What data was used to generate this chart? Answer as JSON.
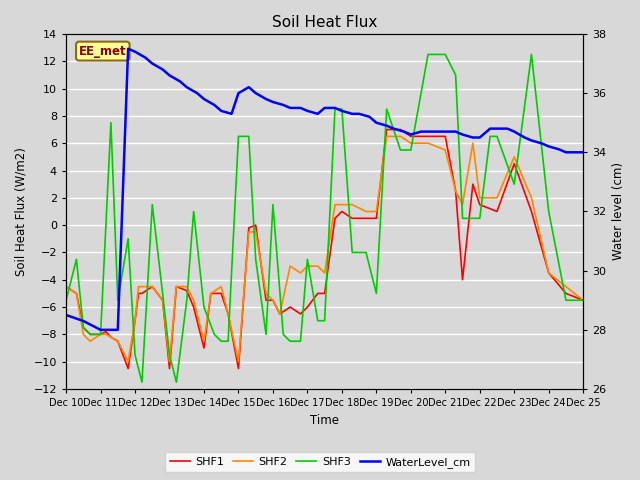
{
  "title": "Soil Heat Flux",
  "ylabel_left": "Soil Heat Flux (W/m2)",
  "ylabel_right": "Water level (cm)",
  "xlabel": "Time",
  "ylim_left": [
    -12,
    14
  ],
  "ylim_right": [
    26,
    38
  ],
  "yticks_left": [
    -12,
    -10,
    -8,
    -6,
    -4,
    -2,
    0,
    2,
    4,
    6,
    8,
    10,
    12,
    14
  ],
  "yticks_right": [
    26,
    28,
    30,
    32,
    34,
    36,
    38
  ],
  "xtick_labels": [
    "Dec 10",
    "Dec 11",
    "Dec 12",
    "Dec 13",
    "Dec 14",
    "Dec 15",
    "Dec 16",
    "Dec 17",
    "Dec 18",
    "Dec 19",
    "Dec 20",
    "Dec 21",
    "Dec 22",
    "Dec 23",
    "Dec 24",
    "Dec 25"
  ],
  "bg_color": "#d8d8d8",
  "plot_bg_color": "#d8d8d8",
  "grid_color": "#ffffff",
  "legend_label": "EE_met",
  "legend_bg": "#ffff99",
  "legend_border": "#8B0000",
  "colors": {
    "SHF1": "#ff0000",
    "SHF2": "#ff8800",
    "SHF3": "#00cc00",
    "WaterLevel_cm": "#0000ff"
  },
  "SHF1_x": [
    0,
    0.3,
    0.5,
    0.7,
    1.0,
    1.15,
    1.3,
    1.5,
    1.8,
    2.0,
    2.1,
    2.2,
    2.5,
    2.8,
    3.0,
    3.2,
    3.5,
    3.7,
    4.0,
    4.2,
    4.5,
    4.7,
    5.0,
    5.3,
    5.5,
    5.8,
    6.0,
    6.2,
    6.5,
    6.8,
    7.0,
    7.3,
    7.5,
    7.8,
    8.0,
    8.3,
    8.7,
    9.0,
    9.3,
    9.7,
    10.0,
    10.5,
    11.0,
    11.3,
    11.5,
    11.8,
    12.0,
    12.5,
    13.0,
    13.5,
    14.0,
    14.5,
    15.0
  ],
  "SHF1": [
    -4.5,
    -5.0,
    -7.5,
    -8.0,
    -8.0,
    -7.8,
    -8.2,
    -8.5,
    -10.5,
    -7.0,
    -5.0,
    -5.0,
    -4.5,
    -5.5,
    -10.5,
    -4.5,
    -4.8,
    -6.0,
    -9.0,
    -5.0,
    -5.0,
    -6.5,
    -10.5,
    -0.2,
    0.0,
    -5.5,
    -5.5,
    -6.5,
    -6.0,
    -6.5,
    -6.0,
    -5.0,
    -5.0,
    0.5,
    1.0,
    0.5,
    0.5,
    0.5,
    7.0,
    7.0,
    6.5,
    6.5,
    6.5,
    2.5,
    -4.0,
    3.0,
    1.5,
    1.0,
    4.5,
    1.0,
    -3.5,
    -5.0,
    -5.5
  ],
  "SHF2_x": [
    0,
    0.3,
    0.5,
    0.7,
    1.0,
    1.15,
    1.3,
    1.5,
    1.8,
    2.0,
    2.1,
    2.2,
    2.5,
    2.8,
    3.0,
    3.2,
    3.5,
    3.7,
    4.0,
    4.2,
    4.5,
    4.7,
    5.0,
    5.3,
    5.5,
    5.8,
    6.0,
    6.2,
    6.5,
    6.8,
    7.0,
    7.3,
    7.5,
    7.8,
    8.0,
    8.3,
    8.7,
    9.0,
    9.3,
    9.7,
    10.0,
    10.5,
    11.0,
    11.3,
    11.5,
    11.8,
    12.0,
    12.5,
    13.0,
    13.5,
    14.0,
    14.5,
    15.0
  ],
  "SHF2": [
    -4.5,
    -5.0,
    -8.0,
    -8.5,
    -8.0,
    -8.0,
    -8.2,
    -8.5,
    -10.0,
    -7.0,
    -4.5,
    -4.5,
    -4.5,
    -5.5,
    -10.0,
    -4.5,
    -4.5,
    -5.5,
    -8.5,
    -5.0,
    -4.5,
    -6.5,
    -10.0,
    -0.5,
    -0.5,
    -5.0,
    -5.5,
    -6.5,
    -3.0,
    -3.5,
    -3.0,
    -3.0,
    -3.5,
    1.5,
    1.5,
    1.5,
    1.0,
    1.0,
    6.5,
    6.5,
    6.0,
    6.0,
    5.5,
    2.5,
    1.5,
    6.0,
    2.0,
    2.0,
    5.0,
    2.0,
    -3.5,
    -4.5,
    -5.5
  ],
  "SHF3_x": [
    0,
    0.3,
    0.5,
    0.7,
    1.0,
    1.3,
    1.5,
    1.8,
    2.0,
    2.2,
    2.5,
    2.8,
    3.0,
    3.2,
    3.5,
    3.7,
    4.0,
    4.3,
    4.5,
    4.7,
    5.0,
    5.3,
    5.5,
    5.8,
    6.0,
    6.3,
    6.5,
    6.8,
    7.0,
    7.3,
    7.5,
    7.8,
    8.0,
    8.3,
    8.7,
    9.0,
    9.3,
    9.7,
    10.0,
    10.5,
    11.0,
    11.3,
    11.5,
    11.8,
    12.0,
    12.3,
    12.5,
    13.0,
    13.5,
    14.0,
    14.5,
    15.0
  ],
  "SHF3": [
    -5.5,
    -2.5,
    -7.5,
    -8.0,
    -8.0,
    7.5,
    -5.5,
    -1.0,
    -9.5,
    -11.5,
    1.5,
    -5.0,
    -9.5,
    -11.5,
    -5.5,
    1.0,
    -6.0,
    -8.0,
    -8.5,
    -8.5,
    6.5,
    6.5,
    -2.5,
    -8.0,
    1.5,
    -8.0,
    -8.5,
    -8.5,
    -2.5,
    -7.0,
    -7.0,
    8.5,
    8.5,
    -2.0,
    -2.0,
    -5.0,
    8.5,
    5.5,
    5.5,
    12.5,
    12.5,
    11.0,
    0.5,
    0.5,
    0.5,
    6.5,
    6.5,
    3.0,
    12.5,
    1.0,
    -5.5,
    -5.5
  ],
  "WL_x": [
    0,
    0.5,
    1.0,
    1.5,
    1.8,
    2.0,
    2.3,
    2.5,
    2.8,
    3.0,
    3.3,
    3.5,
    3.8,
    4.0,
    4.3,
    4.5,
    4.8,
    5.0,
    5.3,
    5.5,
    5.8,
    6.0,
    6.3,
    6.5,
    6.8,
    7.0,
    7.3,
    7.5,
    7.8,
    8.0,
    8.3,
    8.5,
    8.8,
    9.0,
    9.3,
    9.5,
    9.8,
    10.0,
    10.3,
    10.5,
    10.8,
    11.0,
    11.3,
    11.5,
    11.8,
    12.0,
    12.3,
    12.5,
    12.8,
    13.0,
    13.3,
    13.5,
    13.8,
    14.0,
    14.3,
    14.5,
    14.8,
    15.0
  ],
  "WaterLevel_cm": [
    28.5,
    28.3,
    28.0,
    28.0,
    37.5,
    37.4,
    37.2,
    37.0,
    36.8,
    36.6,
    36.4,
    36.2,
    36.0,
    35.8,
    35.6,
    35.4,
    35.3,
    36.0,
    36.2,
    36.0,
    35.8,
    35.7,
    35.6,
    35.5,
    35.5,
    35.4,
    35.3,
    35.5,
    35.5,
    35.4,
    35.3,
    35.3,
    35.2,
    35.0,
    34.9,
    34.8,
    34.7,
    34.6,
    34.7,
    34.7,
    34.7,
    34.7,
    34.7,
    34.6,
    34.5,
    34.5,
    34.8,
    34.8,
    34.8,
    34.7,
    34.5,
    34.4,
    34.3,
    34.2,
    34.1,
    34.0,
    34.0,
    34.0
  ]
}
